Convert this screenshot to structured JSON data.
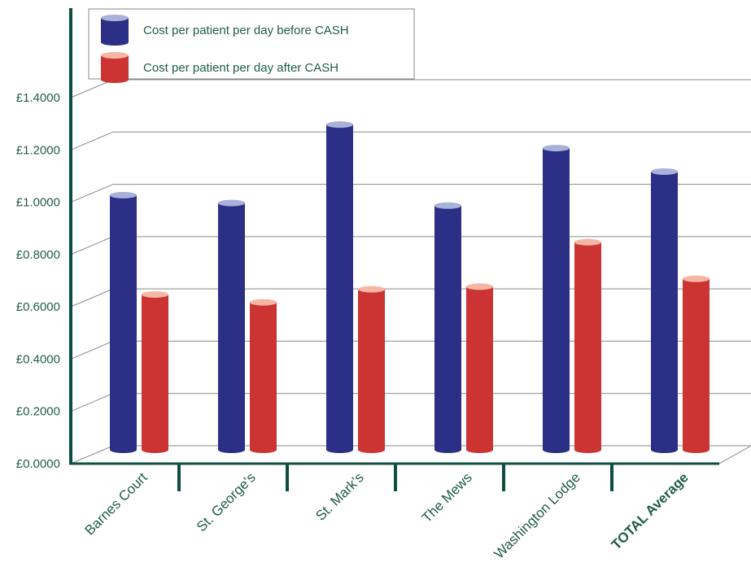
{
  "chart_data": {
    "type": "bar",
    "title": "",
    "xlabel": "",
    "ylabel": "",
    "ylim": [
      0,
      1.4
    ],
    "y_ticks": [
      "£0.0000",
      "£0.2000",
      "£0.4000",
      "£0.6000",
      "£0.8000",
      "£1.0000",
      "£1.2000",
      "£1.4000"
    ],
    "categories": [
      "Barnes Court",
      "St. George's",
      "St. Mark's",
      "The Mews",
      "Washington Lodge",
      "TOTAL Average"
    ],
    "bold_categories": [
      "TOTAL Average"
    ],
    "series": [
      {
        "name": "Cost per patient per day before CASH",
        "color": "#2b2f86",
        "cap_color": "#a9b0d9",
        "values": [
          1.03,
          1.0,
          1.3,
          0.99,
          1.21,
          1.12
        ]
      },
      {
        "name": "Cost per patient per day after CASH",
        "color": "#cc3333",
        "cap_color": "#f5b7a3",
        "values": [
          0.65,
          0.62,
          0.67,
          0.68,
          0.85,
          0.71
        ]
      }
    ],
    "grid": true,
    "legend_position": "top-left",
    "axis_color": "#0e4d3f"
  }
}
